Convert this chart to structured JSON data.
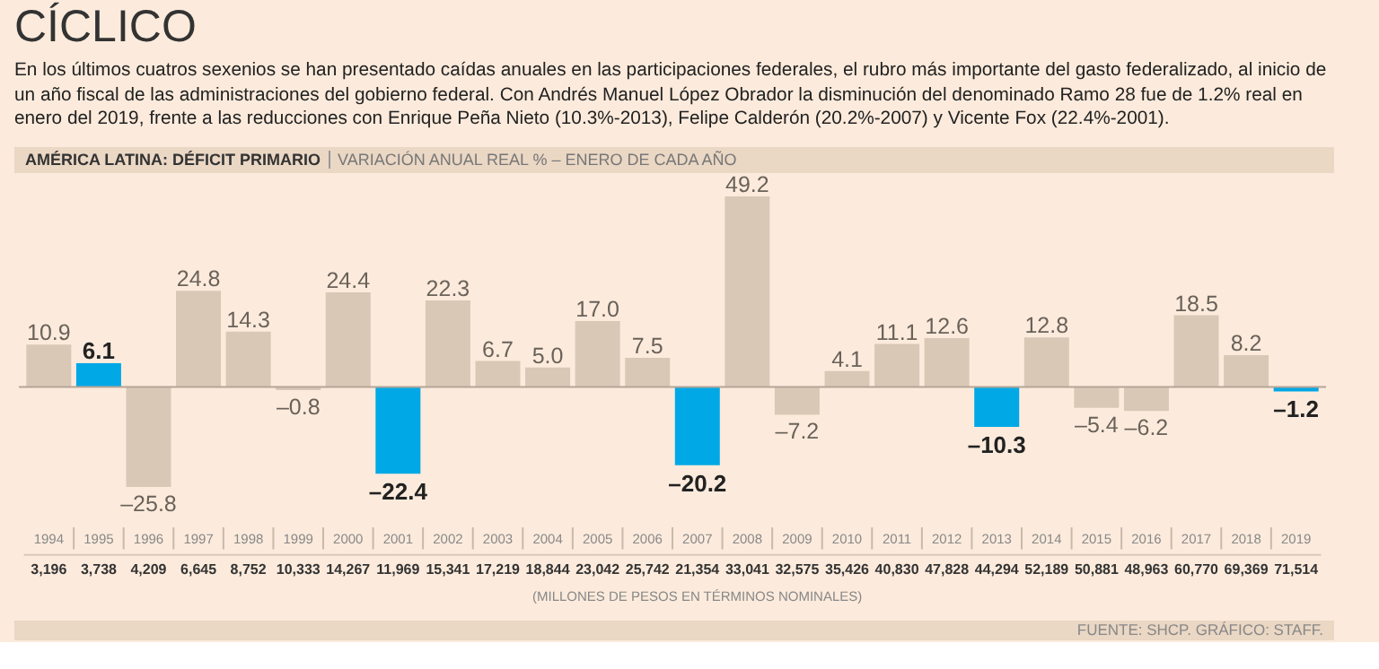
{
  "chart_data": {
    "type": "bar",
    "title": "CÍCLICO",
    "subtitle": "En los últimos cuatros sexenios se han presentado caídas anuales en las participaciones federales, el rubro más importante del gasto federalizado, al inicio de un año fiscal de las administraciones del gobierno federal. Con Andrés Manuel López Obrador la disminución del denominado Ramo 28 fue de 1.2% real en enero del 2019, frente a las reducciones con Enrique Peña Nieto (10.3%-2013), Felipe Calderón (20.2%-2007) y Vicente Fox (22.4%-2001).",
    "categories": [
      "1994",
      "1995",
      "1996",
      "1997",
      "1998",
      "1999",
      "2000",
      "2001",
      "2002",
      "2003",
      "2004",
      "2005",
      "2006",
      "2007",
      "2008",
      "2009",
      "2010",
      "2011",
      "2012",
      "2013",
      "2014",
      "2015",
      "2016",
      "2017",
      "2018",
      "2019"
    ],
    "values": [
      10.9,
      6.1,
      -25.8,
      24.8,
      14.3,
      -0.8,
      24.4,
      -22.4,
      22.3,
      6.7,
      5.0,
      17.0,
      7.5,
      -20.2,
      49.2,
      -7.2,
      4.1,
      11.1,
      12.6,
      -10.3,
      12.8,
      -5.4,
      -6.2,
      18.5,
      8.2,
      -1.2
    ],
    "value_labels": [
      "10.9",
      "6.1",
      "–25.8",
      "24.8",
      "14.3",
      "–0.8",
      "24.4",
      "–22.4",
      "22.3",
      "6.7",
      "5.0",
      "17.0",
      "7.5",
      "–20.2",
      "49.2",
      "–7.2",
      "4.1",
      "11.1",
      "12.6",
      "–10.3",
      "12.8",
      "–5.4",
      "–6.2",
      "18.5",
      "8.2",
      "–1.2"
    ],
    "colors": [
      "#d9c8b6",
      "#00a8e6",
      "#d9c8b6",
      "#d9c8b6",
      "#d9c8b6",
      "#d9c8b6",
      "#d9c8b6",
      "#00a8e6",
      "#d9c8b6",
      "#d9c8b6",
      "#d9c8b6",
      "#d9c8b6",
      "#d9c8b6",
      "#00a8e6",
      "#d9c8b6",
      "#d9c8b6",
      "#d9c8b6",
      "#d9c8b6",
      "#d9c8b6",
      "#00a8e6",
      "#d9c8b6",
      "#d9c8b6",
      "#d9c8b6",
      "#d9c8b6",
      "#d9c8b6",
      "#00a8e6"
    ],
    "annotations": [
      "AMÉRICA LATINA: DÉFICIT PRIMARIO",
      "VARIACIÓN ANUAL REAL % – ENERO DE CADA AÑO",
      "(MILLONES DE PESOS EN TÉRMINOS NOMINALES)",
      "FUENTE: SHCP. GRÁFICO: STAFF.",
      "3,196",
      "3,738",
      "4,209",
      "6,645",
      "8,752",
      "10,333",
      "14,267",
      "11,969",
      "15,341",
      "17,219",
      "18,844",
      "23,042",
      "25,742",
      "21,354",
      "33,041",
      "32,575",
      "35,426",
      "40,830",
      "47,828",
      "44,294",
      "52,189",
      "50,881",
      "48,963",
      "60,770",
      "69,369",
      "71,514"
    ]
  }
}
